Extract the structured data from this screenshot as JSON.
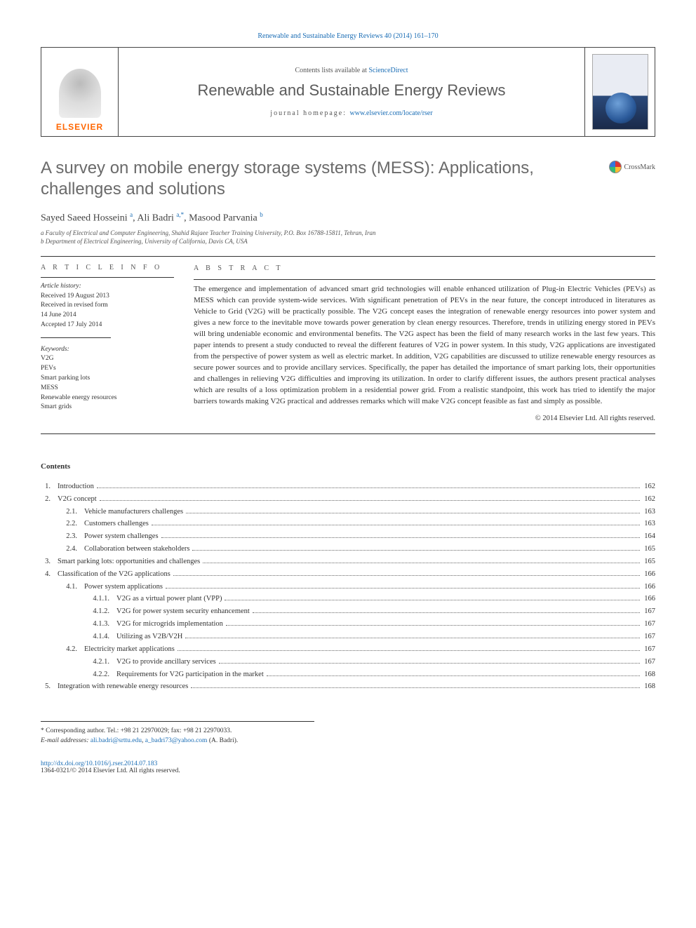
{
  "header": {
    "top_link_text": "Renewable and Sustainable Energy Reviews 40 (2014) 161–170",
    "contents_lists_label": "Contents lists available at ",
    "contents_lists_link": "ScienceDirect",
    "journal_name": "Renewable and Sustainable Energy Reviews",
    "homepage_label": "journal homepage: ",
    "homepage_link": "www.elsevier.com/locate/rser",
    "publisher": "ELSEVIER",
    "crossmark": "CrossMark"
  },
  "article": {
    "title": "A survey on mobile energy storage systems (MESS): Applications, challenges and solutions",
    "authors_html": "Sayed Saeed Hosseini <sup>a</sup>, Ali Badri <sup>a,*</sup>, Masood Parvania <sup>b</sup>",
    "affiliations": [
      "a Faculty of Electrical and Computer Engineering, Shahid Rajaee Teacher Training University, P.O. Box 16788-15811, Tehran, Iran",
      "b Department of Electrical Engineering, University of California, Davis CA, USA"
    ]
  },
  "article_info": {
    "heading": "A R T I C L E  I N F O",
    "history_label": "Article history:",
    "history": [
      "Received 19 August 2013",
      "Received in revised form",
      "14 June 2014",
      "Accepted 17 July 2014"
    ],
    "keywords_label": "Keywords:",
    "keywords": [
      "V2G",
      "PEVs",
      "Smart parking lots",
      "MESS",
      "Renewable energy resources",
      "Smart grids"
    ]
  },
  "abstract": {
    "heading": "A B S T R A C T",
    "text": "The emergence and implementation of advanced smart grid technologies will enable enhanced utilization of Plug-in Electric Vehicles (PEVs) as MESS which can provide system-wide services. With significant penetration of PEVs in the near future, the concept introduced in literatures as Vehicle to Grid (V2G) will be practically possible. The V2G concept eases the integration of renewable energy resources into power system and gives a new force to the inevitable move towards power generation by clean energy resources. Therefore, trends in utilizing energy stored in PEVs will bring undeniable economic and environmental benefits. The V2G aspect has been the field of many research works in the last few years. This paper intends to present a study conducted to reveal the different features of V2G in power system. In this study, V2G applications are investigated from the perspective of power system as well as electric market. In addition, V2G capabilities are discussed to utilize renewable energy resources as secure power sources and to provide ancillary services. Specifically, the paper has detailed the importance of smart parking lots, their opportunities and challenges in relieving V2G difficulties and improving its utilization. In order to clarify different issues, the authors present practical analyses which are results of a loss optimization problem in a residential power grid. From a realistic standpoint, this work has tried to identify the major barriers towards making V2G practical and addresses remarks which will make V2G concept feasible as fast and simply as possible.",
    "copyright": "© 2014 Elsevier Ltd. All rights reserved."
  },
  "contents": {
    "heading": "Contents",
    "items": [
      {
        "level": 0,
        "num": "1.",
        "title": "Introduction",
        "page": "162"
      },
      {
        "level": 0,
        "num": "2.",
        "title": "V2G concept",
        "page": "162"
      },
      {
        "level": 1,
        "num": "2.1.",
        "title": "Vehicle manufacturers challenges",
        "page": "163"
      },
      {
        "level": 1,
        "num": "2.2.",
        "title": "Customers challenges",
        "page": "163"
      },
      {
        "level": 1,
        "num": "2.3.",
        "title": "Power system challenges",
        "page": "164"
      },
      {
        "level": 1,
        "num": "2.4.",
        "title": "Collaboration between stakeholders",
        "page": "165"
      },
      {
        "level": 0,
        "num": "3.",
        "title": "Smart parking lots: opportunities and challenges",
        "page": "165"
      },
      {
        "level": 0,
        "num": "4.",
        "title": "Classification of the V2G applications",
        "page": "166"
      },
      {
        "level": 1,
        "num": "4.1.",
        "title": "Power system applications",
        "page": "166"
      },
      {
        "level": 2,
        "num": "4.1.1.",
        "title": "V2G as a virtual power plant (VPP)",
        "page": "166"
      },
      {
        "level": 2,
        "num": "4.1.2.",
        "title": "V2G for power system security enhancement",
        "page": "167"
      },
      {
        "level": 2,
        "num": "4.1.3.",
        "title": "V2G for microgrids implementation",
        "page": "167"
      },
      {
        "level": 2,
        "num": "4.1.4.",
        "title": "Utilizing as V2B/V2H",
        "page": "167"
      },
      {
        "level": 1,
        "num": "4.2.",
        "title": "Electricity market applications",
        "page": "167"
      },
      {
        "level": 2,
        "num": "4.2.1.",
        "title": "V2G to provide ancillary services",
        "page": "167"
      },
      {
        "level": 2,
        "num": "4.2.2.",
        "title": "Requirements for V2G participation in the market",
        "page": "168"
      },
      {
        "level": 0,
        "num": "5.",
        "title": "Integration with renewable energy resources",
        "page": "168"
      }
    ]
  },
  "footnotes": {
    "corresponding": "* Corresponding author. Tel.: +98 21 22970029; fax: +98 21 22970033.",
    "email_label": "E-mail addresses: ",
    "emails": [
      "ali.badri@srttu.edu",
      "a_badri73@yahoo.com"
    ],
    "email_suffix": " (A. Badri)."
  },
  "footer": {
    "doi": "http://dx.doi.org/10.1016/j.rser.2014.07.183",
    "issn_line": "1364-0321/© 2014 Elsevier Ltd. All rights reserved."
  },
  "colors": {
    "link": "#1a6db5",
    "heading_gray": "#6a6a6a",
    "text": "#333333",
    "elsevier_orange": "#ff6600"
  }
}
